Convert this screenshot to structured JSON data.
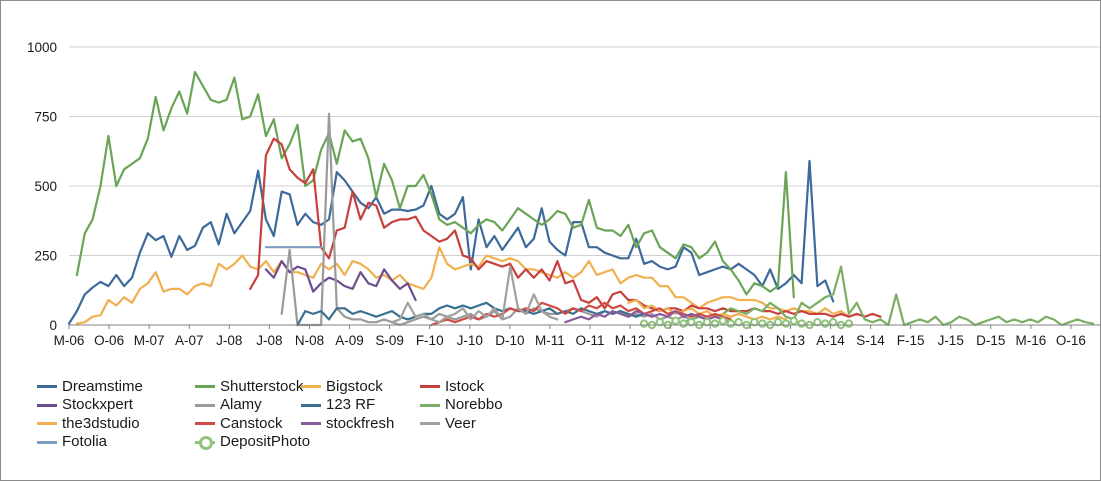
{
  "chart_data": {
    "type": "line",
    "title": "",
    "xlabel": "",
    "ylabel": "",
    "ylim": [
      0,
      1000
    ],
    "yticks": [
      0,
      250,
      500,
      750,
      1000
    ],
    "grid": "horizontal",
    "legend_position": "bottom-left",
    "x_start": "2006-03",
    "x_end": "2017-02",
    "x_tick_labels": [
      "M-06",
      "O-06",
      "M-07",
      "A-07",
      "J-08",
      "J-08",
      "N-08",
      "A-09",
      "S-09",
      "F-10",
      "J-10",
      "D-10",
      "M-11",
      "O-11",
      "M-12",
      "A-12",
      "J-13",
      "J-13",
      "N-13",
      "A-14",
      "S-14",
      "F-15",
      "J-15",
      "D-15",
      "M-16",
      "O-16"
    ],
    "series": [
      {
        "name": "Dreamstime",
        "color": "#3d6a9a",
        "start": "2006-03",
        "values": [
          5,
          50,
          110,
          135,
          155,
          140,
          180,
          140,
          170,
          260,
          330,
          305,
          320,
          245,
          320,
          270,
          285,
          350,
          370,
          290,
          400,
          330,
          370,
          410,
          555,
          380,
          320,
          480,
          470,
          360,
          400,
          370,
          360,
          380,
          550,
          520,
          480,
          440,
          420,
          460,
          400,
          415,
          415,
          410,
          415,
          430,
          500,
          400,
          380,
          400,
          460,
          200,
          380,
          280,
          320,
          270,
          310,
          350,
          280,
          310,
          420,
          300,
          270,
          250,
          370,
          370,
          280,
          280,
          260,
          250,
          240,
          240,
          310,
          220,
          230,
          210,
          200,
          210,
          280,
          260,
          180,
          190,
          200,
          210,
          200,
          220,
          200,
          180,
          140,
          200,
          130,
          150,
          180,
          150,
          590,
          140,
          160,
          85
        ]
      },
      {
        "name": "Shutterstock",
        "color": "#6aa456",
        "start": "2006-04",
        "values": [
          180,
          330,
          380,
          500,
          680,
          500,
          560,
          580,
          600,
          670,
          820,
          700,
          780,
          840,
          760,
          910,
          860,
          810,
          800,
          810,
          890,
          740,
          750,
          830,
          680,
          740,
          600,
          650,
          720,
          500,
          520,
          630,
          690,
          580,
          700,
          660,
          670,
          600,
          460,
          580,
          520,
          420,
          500,
          500,
          540,
          470,
          380,
          360,
          370,
          350,
          330,
          360,
          380,
          370,
          340,
          380,
          420,
          400,
          380,
          360,
          380,
          410,
          400,
          350,
          360,
          450,
          350,
          340,
          340,
          320,
          360,
          280,
          330,
          340,
          280,
          260,
          240,
          290,
          280,
          240,
          260,
          300,
          230,
          200,
          160,
          110,
          150,
          140,
          120,
          140,
          550,
          100
        ]
      },
      {
        "name": "Bigstock",
        "color": "#f0b050",
        "start": "2006-04",
        "values": [
          5,
          10,
          30,
          35,
          90,
          70,
          100,
          80,
          130,
          150,
          190,
          120,
          130,
          130,
          110,
          140,
          150,
          140,
          220,
          200,
          220,
          250,
          210,
          200,
          230,
          190,
          230,
          190,
          190,
          180,
          170,
          220,
          200,
          220,
          180,
          230,
          220,
          200,
          170,
          180,
          160,
          180,
          150,
          140,
          130,
          170,
          280,
          220,
          200,
          210,
          220,
          210,
          250,
          240,
          230,
          240,
          230,
          200,
          200,
          190,
          180,
          170,
          190,
          170,
          190,
          230,
          180,
          190,
          200,
          150,
          170,
          180,
          170,
          170,
          140,
          140,
          100,
          100,
          80,
          60,
          80,
          90,
          100,
          100,
          90,
          90,
          90,
          80,
          60,
          60,
          50,
          60,
          50,
          50,
          40,
          60,
          40,
          50,
          30
        ]
      },
      {
        "name": "Istock",
        "color": "#c8403c",
        "start": "2008-02",
        "values": [
          130,
          180,
          610,
          670,
          650,
          560,
          530,
          510,
          560,
          280,
          240,
          340,
          350,
          480,
          380,
          440,
          430,
          350,
          370,
          380,
          380,
          390,
          340,
          320,
          300,
          310,
          340,
          250,
          240,
          200,
          230,
          220,
          210,
          220,
          170,
          200,
          170,
          200,
          160,
          230,
          150,
          160,
          90,
          80,
          100,
          60,
          110,
          120,
          90,
          90,
          70,
          60,
          50,
          60,
          60,
          50,
          70,
          60,
          60,
          50,
          60,
          50,
          50,
          50,
          60,
          50,
          50,
          40,
          50,
          40,
          50,
          40,
          40,
          40,
          30,
          40,
          30,
          40,
          30,
          40,
          30
        ]
      },
      {
        "name": "Stockxpert",
        "color": "#6d4d8c",
        "start": "2008-04",
        "values": [
          200,
          170,
          230,
          190,
          210,
          200,
          120,
          150,
          170,
          160,
          140,
          130,
          190,
          150,
          140,
          200,
          160,
          130,
          150,
          90
        ]
      },
      {
        "name": "Alamy",
        "color": "#9a9a9a",
        "start": "2008-06",
        "values": [
          40,
          270,
          0,
          0,
          0,
          0,
          760,
          60,
          30,
          20,
          20,
          10,
          10,
          20,
          10,
          0,
          10,
          20,
          30,
          20,
          40,
          30,
          20,
          30,
          40,
          20,
          30,
          50,
          20,
          30,
          60,
          40,
          60,
          50,
          40,
          40,
          50,
          60,
          50,
          40,
          30,
          50,
          40,
          50,
          30,
          40,
          30,
          40,
          20,
          30,
          20,
          30,
          20,
          30,
          20,
          30,
          20,
          10
        ]
      },
      {
        "name": "123 RF",
        "color": "#3a6f90",
        "start": "2008-08",
        "values": [
          0,
          50,
          40,
          50,
          20,
          60,
          60,
          40,
          50,
          40,
          30,
          40,
          50,
          30,
          20,
          30,
          40,
          40,
          60,
          70,
          60,
          70,
          60,
          70,
          80,
          60,
          50,
          60,
          50,
          50,
          40,
          50,
          60,
          40,
          50,
          40,
          60,
          50,
          40,
          50,
          40,
          50,
          40,
          30,
          40,
          30
        ]
      },
      {
        "name": "Norebbo",
        "color": "#7aae62",
        "start": "2012-09",
        "values": [
          10,
          20,
          30,
          20,
          30,
          40,
          60,
          50,
          40,
          60,
          50,
          80,
          60,
          30,
          20,
          80,
          60,
          80,
          100,
          110,
          210,
          40,
          80,
          20,
          10,
          20,
          0,
          110,
          0,
          10,
          20,
          10,
          30,
          0,
          10,
          30,
          20,
          0,
          10,
          20,
          30,
          10,
          20,
          10,
          20,
          10,
          30,
          20,
          0,
          10,
          20,
          10,
          5
        ]
      },
      {
        "name": "the3dstudio",
        "color": "#f0b050",
        "start": "2012-02",
        "values": [
          80,
          90,
          60,
          70,
          50,
          60,
          40,
          50,
          60,
          40,
          50,
          30,
          40,
          30,
          40,
          30,
          20,
          30,
          20,
          30,
          20
        ]
      },
      {
        "name": "Canstock",
        "color": "#d04a44",
        "start": "2010-01",
        "values": [
          0,
          10,
          20,
          10,
          20,
          30,
          20,
          40,
          30,
          40,
          60,
          50,
          60,
          50,
          80,
          70,
          60,
          40,
          60,
          50,
          70,
          60,
          80,
          60,
          70,
          50,
          60,
          40,
          50,
          60,
          40,
          50,
          40,
          30,
          40,
          30,
          40,
          30,
          20
        ]
      },
      {
        "name": "stockfresh",
        "color": "#8a5a9a",
        "start": "2011-06",
        "values": [
          10,
          20,
          30,
          20,
          40,
          30,
          50,
          40,
          30,
          50,
          40,
          30,
          40,
          30,
          50,
          30,
          40,
          30,
          20,
          30,
          20
        ]
      },
      {
        "name": "Veer",
        "color": "#a0a0a0",
        "start": "2009-08",
        "values": [
          10,
          20,
          80,
          30,
          40,
          20,
          10,
          30,
          40,
          60,
          20,
          50,
          30,
          60,
          20,
          210,
          60,
          40,
          110,
          50,
          30,
          20
        ]
      },
      {
        "name": "Fotolia",
        "color": "#7c9dc0",
        "start": "2008-04",
        "values": [
          280,
          280,
          280,
          280,
          280,
          280,
          280,
          280
        ]
      },
      {
        "name": "DepositPhoto",
        "color": "#8fc47a",
        "start": "2012-04",
        "marker": "ring",
        "values": [
          5,
          0,
          10,
          0,
          15,
          5,
          10,
          0,
          10,
          5,
          15,
          5,
          10,
          0,
          10,
          5,
          0,
          10,
          5,
          15,
          5,
          0,
          10,
          5,
          10,
          0,
          5
        ]
      }
    ]
  }
}
